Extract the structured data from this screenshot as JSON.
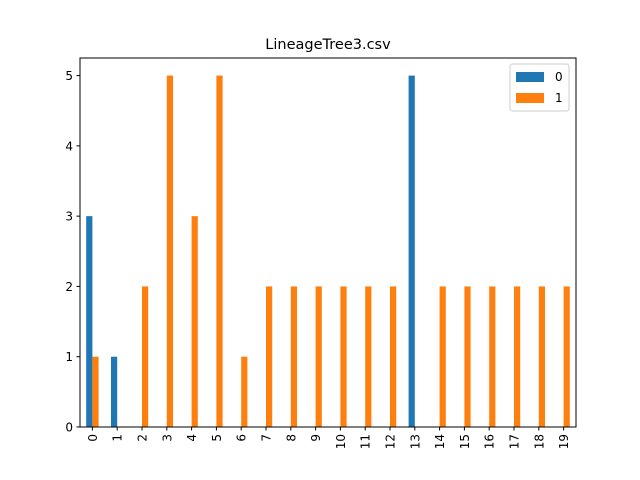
{
  "chart_data": {
    "type": "bar",
    "title": "LineageTree3.csv",
    "xlabel": "",
    "ylabel": "",
    "categories": [
      "0",
      "1",
      "2",
      "3",
      "4",
      "5",
      "6",
      "7",
      "8",
      "9",
      "10",
      "11",
      "12",
      "13",
      "14",
      "15",
      "16",
      "17",
      "18",
      "19"
    ],
    "series": [
      {
        "name": "0",
        "color": "#1f77b4",
        "values": [
          3,
          1,
          0,
          0,
          0,
          0,
          0,
          0,
          0,
          0,
          0,
          0,
          0,
          5,
          0,
          0,
          0,
          0,
          0,
          0
        ]
      },
      {
        "name": "1",
        "color": "#ff7f0e",
        "values": [
          1,
          0,
          2,
          5,
          3,
          5,
          1,
          2,
          2,
          2,
          2,
          2,
          2,
          0,
          2,
          2,
          2,
          2,
          2,
          2
        ]
      }
    ],
    "yticks": [
      0,
      1,
      2,
      3,
      4,
      5
    ],
    "ylim": [
      0,
      5.25
    ],
    "grid": false,
    "legend_position": "top-right"
  }
}
